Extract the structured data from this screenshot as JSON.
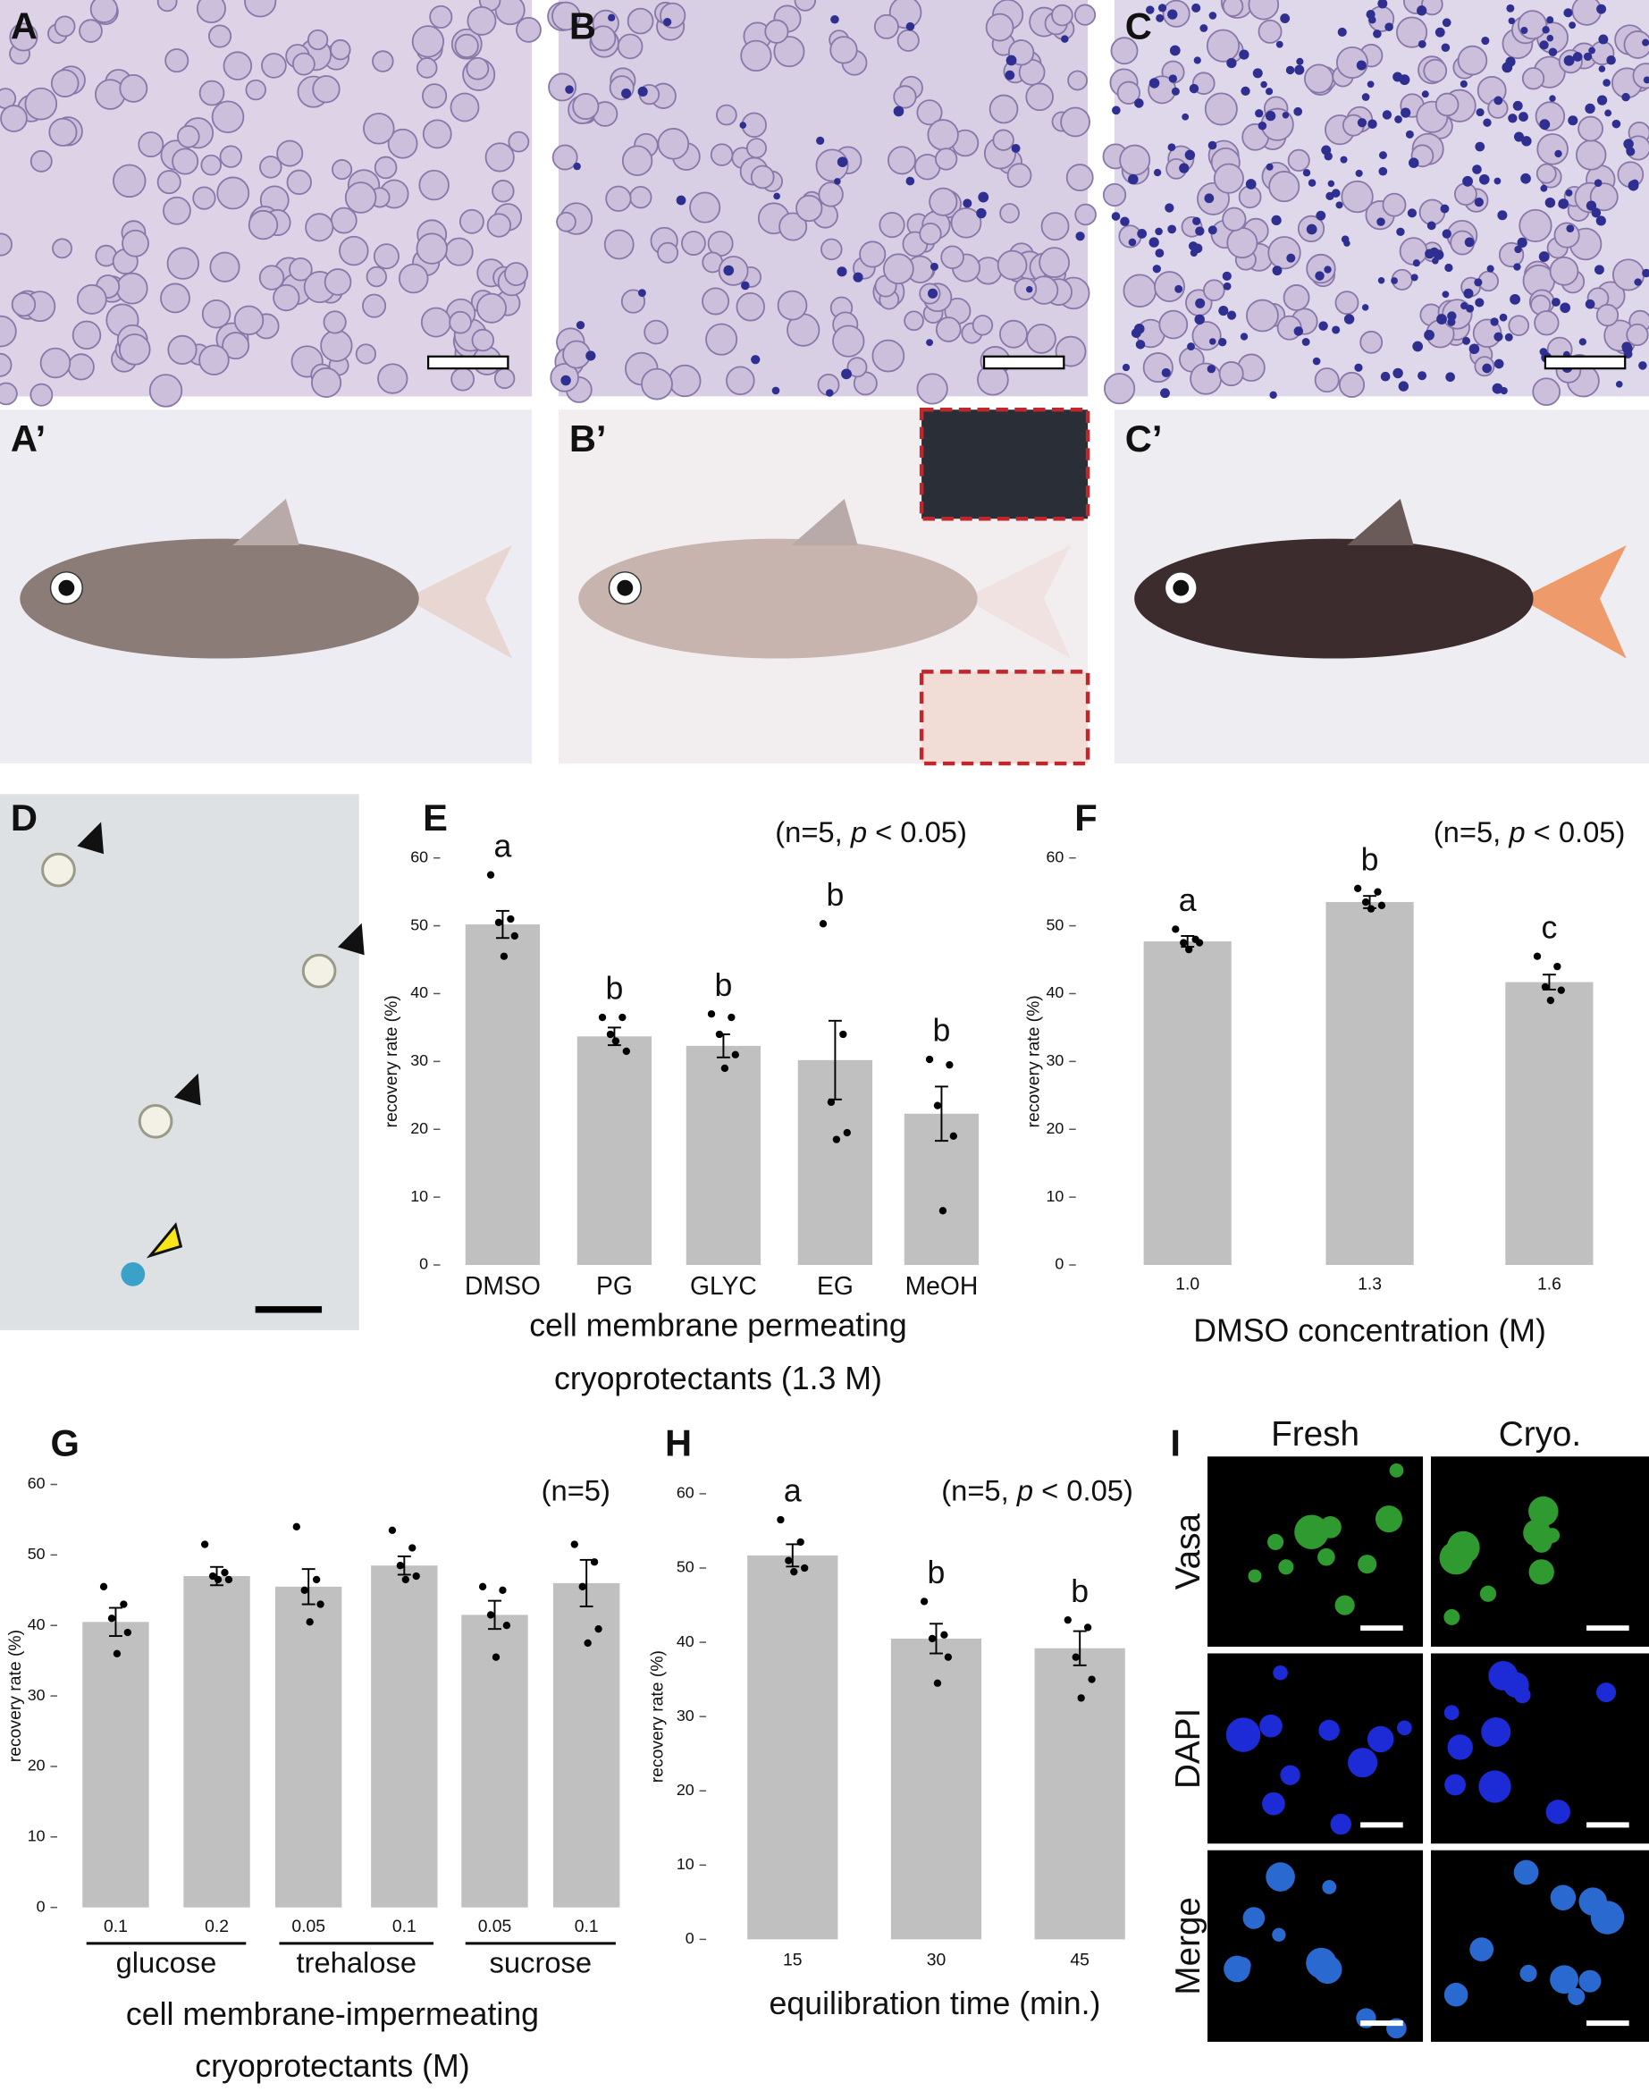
{
  "panel_labels": [
    "A",
    "B",
    "C",
    "A’",
    "B’",
    "C’",
    "D",
    "E",
    "F",
    "G",
    "H",
    "I"
  ],
  "chart_data": [
    {
      "type": "bar",
      "categories": [
        "DMSO",
        "PG",
        "GLYC",
        "EG",
        "MeOH"
      ],
      "values": [
        50.2,
        33.7,
        32.3,
        30.2,
        22.3
      ],
      "errors": [
        2,
        1.3,
        1.7,
        5.8,
        4
      ],
      "points": [
        [
          57.5,
          51,
          50.5,
          48.5,
          45.5
        ],
        [
          36.5,
          36.5,
          34,
          31.5,
          33
        ],
        [
          37,
          36.5,
          34,
          31,
          29
        ],
        [
          50.3,
          34,
          24,
          19.5,
          18.5
        ],
        [
          30.3,
          29.5,
          23.5,
          19,
          8
        ]
      ],
      "letters": [
        "a",
        "b",
        "b",
        "b",
        "b"
      ],
      "color": "#c0c0c0",
      "ylim": [
        0,
        60
      ],
      "yticks": [
        0,
        10,
        20,
        30,
        40,
        50,
        60
      ],
      "ylabel": "recovery rate (%)",
      "xlabel": [
        "cell membrane permeating",
        "cryoprotectants (1.3 M)"
      ],
      "annotation": [
        "(n=5, ",
        "p",
        " < 0.05)"
      ]
    },
    {
      "type": "bar",
      "categories": [
        "1.0",
        "1.3",
        "1.6"
      ],
      "values": [
        47.7,
        53.5,
        41.7
      ],
      "errors": [
        0.8,
        0.9,
        1.1
      ],
      "points": [
        [
          49.5,
          48,
          47.5,
          47.5,
          46.5
        ],
        [
          55.5,
          55,
          53.5,
          53,
          52.5
        ],
        [
          45.5,
          44,
          41,
          40.5,
          39
        ]
      ],
      "letters": [
        "a",
        "b",
        "c"
      ],
      "color": "#c0c0c0",
      "ylim": [
        0,
        60
      ],
      "yticks": [
        0,
        10,
        20,
        30,
        40,
        50,
        60
      ],
      "ylabel": "recovery rate (%)",
      "xlabel": [
        "DMSO concentration (M)"
      ],
      "annotation": [
        "(n=5, ",
        "p",
        " < 0.05)"
      ]
    },
    {
      "type": "bar",
      "categories": [
        "0.1",
        "0.2",
        "0.05",
        "0.1",
        "0.05",
        "0.1"
      ],
      "groups": [
        "glucose",
        "trehalose",
        "sucrose"
      ],
      "values": [
        40.5,
        47,
        45.5,
        48.5,
        41.5,
        46
      ],
      "errors": [
        2,
        1.3,
        2.5,
        1.3,
        2,
        3.3
      ],
      "points": [
        [
          45.5,
          43,
          41,
          39,
          36
        ],
        [
          51.5,
          47.5,
          47,
          46.5,
          46.5
        ],
        [
          54,
          46.5,
          45,
          43,
          40.5
        ],
        [
          53.5,
          51,
          48.5,
          47,
          46.5
        ],
        [
          45.5,
          45,
          41.5,
          40,
          35.5
        ],
        [
          51.5,
          49,
          45.5,
          39.5,
          37.5
        ]
      ],
      "color": "#c0c0c0",
      "ylim": [
        0,
        60
      ],
      "yticks": [
        0,
        10,
        20,
        30,
        40,
        50,
        60
      ],
      "ylabel": "recovery rate (%)",
      "xlabel": [
        "cell membrane-impermeating",
        "cryoprotectants (M)"
      ],
      "annotation": [
        "(n=5)"
      ]
    },
    {
      "type": "bar",
      "categories": [
        "15",
        "30",
        "45"
      ],
      "values": [
        51.7,
        40.5,
        39.2
      ],
      "errors": [
        1.5,
        2,
        2.3
      ],
      "points": [
        [
          56.5,
          53.5,
          51,
          50,
          49.5
        ],
        [
          45.5,
          41,
          40.5,
          38,
          34.5
        ],
        [
          43,
          42,
          38,
          35,
          32.5
        ]
      ],
      "letters": [
        "a",
        "b",
        "b"
      ],
      "color": "#c0c0c0",
      "ylim": [
        0,
        60
      ],
      "yticks": [
        0,
        10,
        20,
        30,
        40,
        50,
        60
      ],
      "ylabel": "recovery rate (%)",
      "xlabel": [
        "equilibration time (min.)"
      ],
      "annotation": [
        "(n=5, ",
        "p",
        " < 0.05)"
      ]
    }
  ],
  "panel_i": {
    "columns": [
      "Fresh",
      "Cryo."
    ],
    "rows": [
      "Vasa",
      "DAPI",
      "Merge"
    ]
  }
}
